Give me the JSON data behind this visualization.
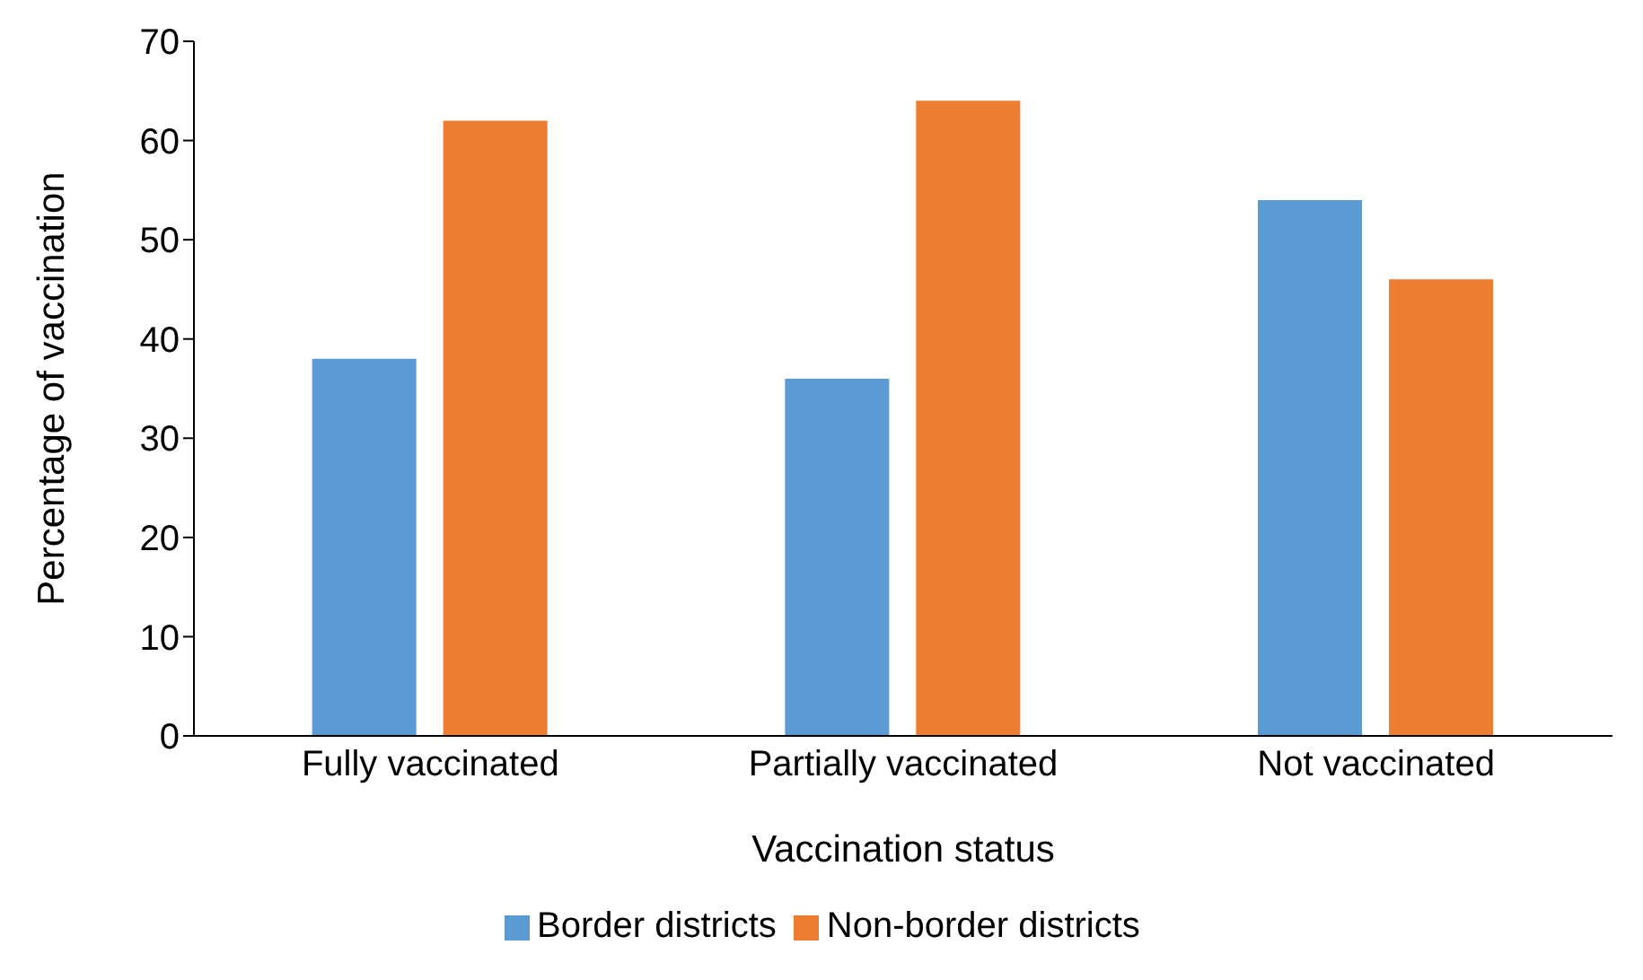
{
  "chart_data": {
    "type": "bar",
    "xlabel": "Vaccination status",
    "ylabel": "Percentage of vaccination",
    "categories": [
      "Fully vaccinated",
      "Partially vaccinated",
      "Not vaccinated"
    ],
    "series": [
      {
        "name": "Border districts",
        "color": "#5b9bd5",
        "values": [
          38,
          36,
          54
        ]
      },
      {
        "name": "Non-border districts",
        "color": "#ed7d31",
        "values": [
          62,
          64,
          46
        ]
      }
    ],
    "ylim": [
      0,
      70
    ],
    "yticks": [
      0,
      10,
      20,
      30,
      40,
      50,
      60,
      70
    ],
    "grid": false,
    "legend": "bottom"
  }
}
